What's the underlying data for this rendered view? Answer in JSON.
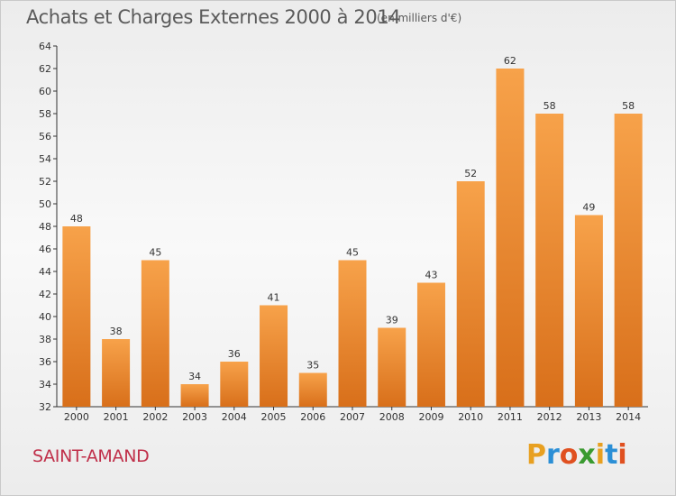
{
  "header": {
    "title": "Achats et Charges Externes 2000 à 2014",
    "subtitle": "(en milliers d'€)"
  },
  "footer": {
    "place": "SAINT-AMAND",
    "brand_letters": [
      "P",
      "r",
      "o",
      "x",
      "i",
      "t",
      "i"
    ],
    "brand_colors": [
      "#e8a020",
      "#2b8fd6",
      "#e05020",
      "#3a9a30",
      "#e8a020",
      "#2b8fd6",
      "#e05020"
    ]
  },
  "colors": {
    "bar_top": "#f7a24a",
    "bar_bottom": "#d86f1a",
    "axis": "#333333",
    "grid": "#dddddd"
  },
  "chart_data": {
    "type": "bar",
    "categories": [
      "2000",
      "2001",
      "2002",
      "2003",
      "2004",
      "2005",
      "2006",
      "2007",
      "2008",
      "2009",
      "2010",
      "2011",
      "2012",
      "2013",
      "2014"
    ],
    "values": [
      48,
      38,
      45,
      34,
      36,
      41,
      35,
      45,
      39,
      43,
      52,
      62,
      58,
      49,
      58
    ],
    "ylim": [
      32,
      64
    ],
    "yticks": [
      32,
      34,
      36,
      38,
      40,
      42,
      44,
      46,
      48,
      50,
      52,
      54,
      56,
      58,
      60,
      62,
      64
    ],
    "grid": false,
    "data_labels": true
  }
}
